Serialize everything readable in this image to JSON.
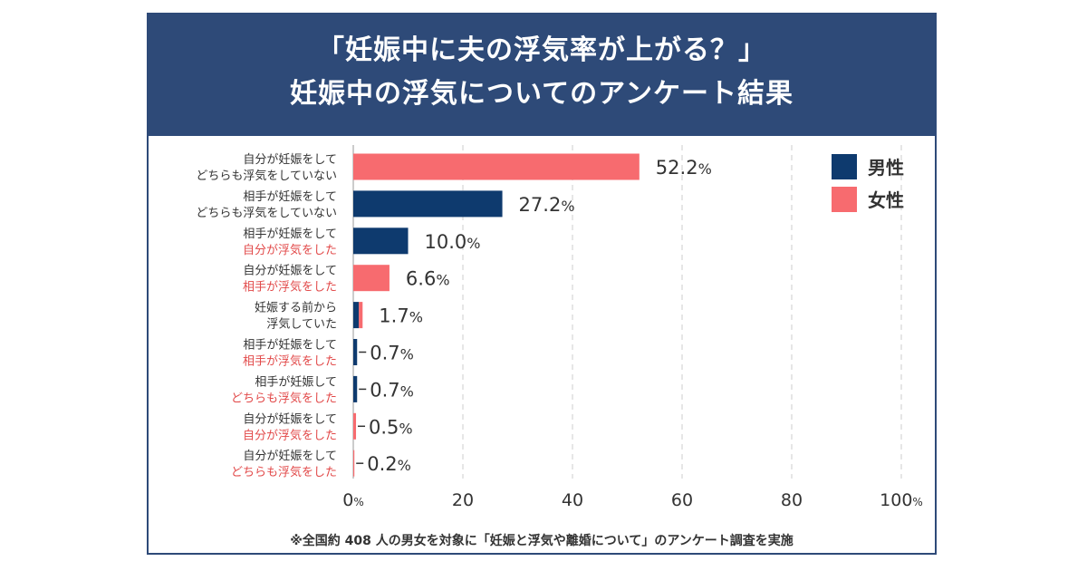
{
  "header": {
    "title_line1": "「妊娠中に夫の浮気率が上がる？」",
    "title_line2": "妊娠中の浮気についてのアンケート結果"
  },
  "footnote": "※全国約 408 人の男女を対象に「妊娠と浮気や離婚について」のアンケート調査を実施",
  "colors": {
    "header": "#2e4a78",
    "male": "#0e3a6e",
    "female": "#f76b6f",
    "red_text": "#e24a4a",
    "text": "#333333"
  },
  "chart_data": {
    "type": "bar",
    "orientation": "horizontal",
    "xlim": [
      0,
      100
    ],
    "ticks": [
      "0",
      "20",
      "40",
      "60",
      "80",
      "100"
    ],
    "tick_units": {
      "0": "%",
      "100": "%"
    },
    "grid": true,
    "legend": {
      "placement": "top-right",
      "items": [
        {
          "label": "男性",
          "color": "#0e3a6e"
        },
        {
          "label": "女性",
          "color": "#f76b6f"
        }
      ]
    },
    "rows": [
      {
        "line1": "自分が妊娠をして",
        "line2": "どちらも浮気をしていない",
        "line2_red": false,
        "value": 52.2,
        "value_label": "52.2",
        "bar": "female",
        "leader": false
      },
      {
        "line1": "相手が妊娠をして",
        "line2": "どちらも浮気をしていない",
        "line2_red": false,
        "value": 27.2,
        "value_label": "27.2",
        "bar": "male",
        "leader": false
      },
      {
        "line1": "相手が妊娠をして",
        "line2": "自分が浮気をした",
        "line2_red": true,
        "value": 10.0,
        "value_label": "10.0",
        "bar": "male",
        "leader": false
      },
      {
        "line1": "自分が妊娠をして",
        "line2": "相手が浮気をした",
        "line2_red": true,
        "value": 6.6,
        "value_label": "6.6",
        "bar": "female",
        "leader": false
      },
      {
        "line1": "妊娠する前から",
        "line2": "浮気していた",
        "line2_red": false,
        "value": 1.7,
        "value_label": "1.7",
        "bar": "both",
        "male_value": 1.0,
        "female_value": 0.7,
        "leader": false
      },
      {
        "line1": "相手が妊娠をして",
        "line2": "相手が浮気をした",
        "line2_red": true,
        "value": 0.7,
        "value_label": "0.7",
        "bar": "male",
        "leader": true
      },
      {
        "line1": "相手が妊娠して",
        "line2": "どちらも浮気をした",
        "line2_red": true,
        "value": 0.7,
        "value_label": "0.7",
        "bar": "male",
        "leader": true
      },
      {
        "line1": "自分が妊娠をして",
        "line2": "自分が浮気をした",
        "line2_red": true,
        "value": 0.5,
        "value_label": "0.5",
        "bar": "female",
        "leader": true
      },
      {
        "line1": "自分が妊娠をして",
        "line2": "どちらも浮気をした",
        "line2_red": true,
        "value": 0.2,
        "value_label": "0.2",
        "bar": "female",
        "leader": true
      }
    ]
  }
}
